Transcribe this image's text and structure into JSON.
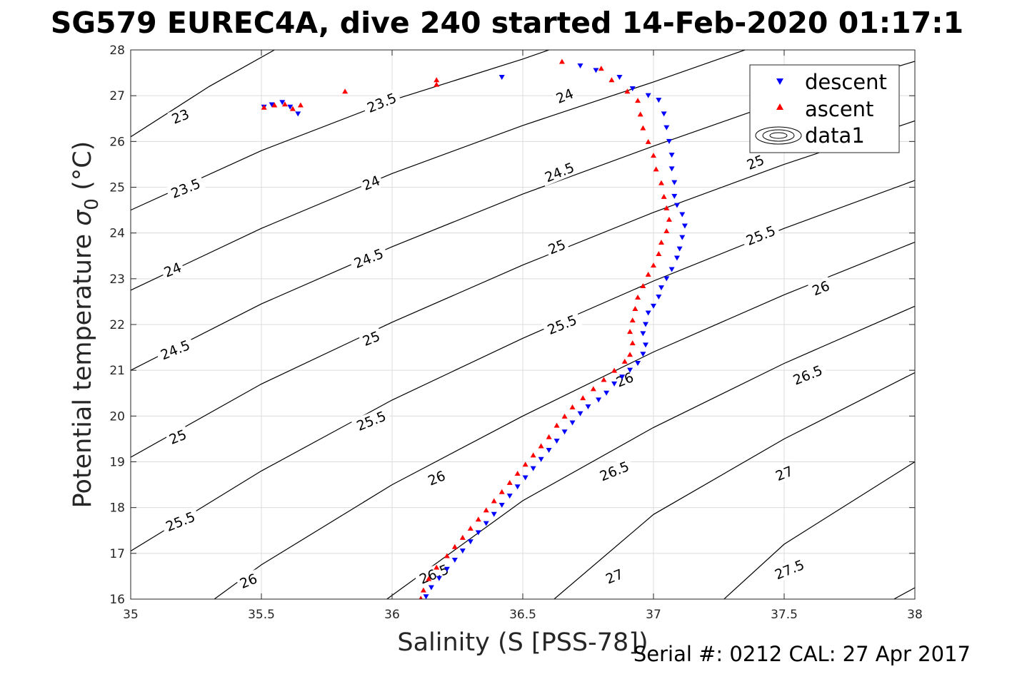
{
  "chart_data": {
    "type": "scatter",
    "title": "SG579 EUREC4A, dive 240 started 14-Feb-2020 01:17:1",
    "xlabel": "Salinity (S [PSS-78])",
    "ylabel_main": "Potential temperature ",
    "ylabel_sigma": "σ",
    "ylabel_sub": "0",
    "ylabel_unit": " (°C)",
    "footer": "Serial #: 0212  CAL: 27 Apr 2017",
    "xlim": [
      35,
      38
    ],
    "ylim": [
      16,
      28
    ],
    "x_ticks": [
      "35",
      "35.5",
      "36",
      "36.5",
      "37",
      "37.5",
      "38"
    ],
    "y_ticks": [
      "16",
      "17",
      "18",
      "19",
      "20",
      "21",
      "22",
      "23",
      "24",
      "25",
      "26",
      "27",
      "28"
    ],
    "grid": true,
    "legend_position": "top-right",
    "legend": [
      "descent",
      "ascent",
      "data1"
    ],
    "colors": {
      "descent": "#0000ff",
      "ascent": "#ff0000",
      "contour": "#000000",
      "grid": "#dcdcdc"
    },
    "contours": [
      {
        "level": "23",
        "points": [
          [
            35.0,
            26.1
          ],
          [
            35.3,
            27.2
          ],
          [
            35.55,
            28.0
          ]
        ]
      },
      {
        "level": "23.5",
        "points": [
          [
            35.0,
            24.5
          ],
          [
            35.5,
            25.8
          ],
          [
            36.0,
            26.9
          ],
          [
            36.5,
            27.8
          ],
          [
            36.6,
            28.0
          ]
        ]
      },
      {
        "level": "24",
        "points": [
          [
            35.0,
            22.75
          ],
          [
            35.5,
            24.1
          ],
          [
            36.0,
            25.3
          ],
          [
            36.5,
            26.35
          ],
          [
            37.0,
            27.3
          ],
          [
            37.35,
            28.0
          ]
        ]
      },
      {
        "level": "24.5",
        "points": [
          [
            35.0,
            21.0
          ],
          [
            35.5,
            22.45
          ],
          [
            36.0,
            23.7
          ],
          [
            36.5,
            24.85
          ],
          [
            37.0,
            25.9
          ],
          [
            37.5,
            26.9
          ],
          [
            38.0,
            27.75
          ]
        ]
      },
      {
        "level": "25",
        "points": [
          [
            35.0,
            19.1
          ],
          [
            35.5,
            20.7
          ],
          [
            36.0,
            22.05
          ],
          [
            36.5,
            23.3
          ],
          [
            37.0,
            24.45
          ],
          [
            37.5,
            25.5
          ],
          [
            38.0,
            26.45
          ]
        ]
      },
      {
        "level": "25.5",
        "points": [
          [
            35.0,
            17.05
          ],
          [
            35.5,
            18.8
          ],
          [
            36.0,
            20.35
          ],
          [
            36.5,
            21.7
          ],
          [
            37.0,
            22.95
          ],
          [
            37.5,
            24.1
          ],
          [
            38.0,
            25.15
          ]
        ]
      },
      {
        "level": "26",
        "points": [
          [
            35.32,
            16.0
          ],
          [
            35.5,
            16.75
          ],
          [
            36.0,
            18.5
          ],
          [
            36.5,
            20.0
          ],
          [
            37.0,
            21.4
          ],
          [
            37.5,
            22.65
          ],
          [
            38.0,
            23.8
          ]
        ]
      },
      {
        "level": "26.5",
        "points": [
          [
            35.98,
            16.0
          ],
          [
            36.5,
            18.15
          ],
          [
            37.0,
            19.75
          ],
          [
            37.5,
            21.15
          ],
          [
            38.0,
            22.4
          ]
        ]
      },
      {
        "level": "27",
        "points": [
          [
            36.62,
            16.0
          ],
          [
            37.0,
            17.85
          ],
          [
            37.5,
            19.5
          ],
          [
            38.0,
            20.95
          ]
        ]
      },
      {
        "level": "27.5",
        "points": [
          [
            37.27,
            16.0
          ],
          [
            37.5,
            17.2
          ],
          [
            38.0,
            19.0
          ]
        ]
      },
      {
        "level": "28",
        "points": [
          [
            37.92,
            16.0
          ],
          [
            38.0,
            16.25
          ]
        ]
      }
    ],
    "contour_labels": [
      {
        "text": "23",
        "x": 35.19,
        "y": 26.55,
        "angle": -22
      },
      {
        "text": "23.5",
        "x": 35.96,
        "y": 26.85,
        "angle": -22
      },
      {
        "text": "24",
        "x": 36.66,
        "y": 27.0,
        "angle": -22
      },
      {
        "text": "23.5",
        "x": 35.21,
        "y": 24.98,
        "angle": -22
      },
      {
        "text": "24",
        "x": 35.92,
        "y": 25.1,
        "angle": -22
      },
      {
        "text": "24.5",
        "x": 36.64,
        "y": 25.33,
        "angle": -22
      },
      {
        "text": "25",
        "x": 37.39,
        "y": 25.55,
        "angle": -22
      },
      {
        "text": "24",
        "x": 35.16,
        "y": 23.2,
        "angle": -22
      },
      {
        "text": "24.5",
        "x": 35.91,
        "y": 23.45,
        "angle": -22
      },
      {
        "text": "25",
        "x": 36.63,
        "y": 23.7,
        "angle": -22
      },
      {
        "text": "25.5",
        "x": 37.41,
        "y": 23.95,
        "angle": -22
      },
      {
        "text": "24.5",
        "x": 35.17,
        "y": 21.45,
        "angle": -22
      },
      {
        "text": "25",
        "x": 35.92,
        "y": 21.7,
        "angle": -22
      },
      {
        "text": "25.5",
        "x": 36.65,
        "y": 22.0,
        "angle": -22
      },
      {
        "text": "26",
        "x": 37.64,
        "y": 22.8,
        "angle": -22
      },
      {
        "text": "25",
        "x": 35.18,
        "y": 19.55,
        "angle": -22
      },
      {
        "text": "25.5",
        "x": 35.92,
        "y": 19.9,
        "angle": -22
      },
      {
        "text": "26",
        "x": 36.89,
        "y": 20.8,
        "angle": -22
      },
      {
        "text": "26.5",
        "x": 37.59,
        "y": 20.9,
        "angle": -22
      },
      {
        "text": "25.5",
        "x": 35.19,
        "y": 17.7,
        "angle": -22
      },
      {
        "text": "26",
        "x": 36.17,
        "y": 18.65,
        "angle": -22
      },
      {
        "text": "26.5",
        "x": 36.85,
        "y": 18.8,
        "angle": -22
      },
      {
        "text": "27",
        "x": 37.5,
        "y": 18.75,
        "angle": -22
      },
      {
        "text": "26",
        "x": 35.45,
        "y": 16.4,
        "angle": -22
      },
      {
        "text": "26.5",
        "x": 36.16,
        "y": 16.55,
        "angle": -22
      },
      {
        "text": "27",
        "x": 36.85,
        "y": 16.5,
        "angle": -22
      },
      {
        "text": "27.5",
        "x": 37.52,
        "y": 16.65,
        "angle": -22
      }
    ],
    "series": [
      {
        "name": "descent",
        "marker": "triangle-down",
        "points": [
          [
            36.42,
            27.4
          ],
          [
            36.72,
            27.65
          ],
          [
            36.78,
            27.55
          ],
          [
            36.87,
            27.4
          ],
          [
            36.92,
            27.15
          ],
          [
            36.98,
            27.0
          ],
          [
            37.02,
            26.9
          ],
          [
            37.04,
            26.6
          ],
          [
            37.05,
            26.3
          ],
          [
            37.06,
            26.0
          ],
          [
            37.07,
            25.7
          ],
          [
            37.07,
            25.4
          ],
          [
            37.08,
            25.1
          ],
          [
            37.08,
            24.8
          ],
          [
            37.09,
            24.6
          ],
          [
            37.11,
            24.4
          ],
          [
            37.12,
            24.15
          ],
          [
            37.11,
            23.9
          ],
          [
            37.1,
            23.65
          ],
          [
            37.09,
            23.45
          ],
          [
            37.07,
            23.2
          ],
          [
            37.05,
            23.0
          ],
          [
            37.03,
            22.8
          ],
          [
            37.02,
            22.6
          ],
          [
            37.0,
            22.4
          ],
          [
            36.98,
            22.25
          ],
          [
            36.97,
            22.0
          ],
          [
            36.96,
            21.8
          ],
          [
            36.97,
            21.55
          ],
          [
            36.96,
            21.35
          ],
          [
            36.94,
            21.15
          ],
          [
            36.91,
            21.0
          ],
          [
            36.88,
            20.85
          ],
          [
            36.85,
            20.7
          ],
          [
            36.82,
            20.5
          ],
          [
            36.79,
            20.35
          ],
          [
            36.75,
            20.2
          ],
          [
            36.72,
            20.05
          ],
          [
            36.69,
            19.85
          ],
          [
            36.66,
            19.65
          ],
          [
            36.63,
            19.45
          ],
          [
            36.6,
            19.25
          ],
          [
            36.57,
            19.05
          ],
          [
            36.54,
            18.85
          ],
          [
            36.51,
            18.65
          ],
          [
            36.48,
            18.45
          ],
          [
            36.45,
            18.25
          ],
          [
            36.42,
            18.05
          ],
          [
            36.39,
            17.85
          ],
          [
            36.36,
            17.65
          ],
          [
            36.33,
            17.45
          ],
          [
            36.3,
            17.25
          ],
          [
            36.27,
            17.05
          ],
          [
            36.24,
            16.85
          ],
          [
            36.21,
            16.65
          ],
          [
            36.18,
            16.45
          ],
          [
            36.15,
            16.25
          ],
          [
            36.13,
            16.05
          ],
          [
            35.51,
            26.75
          ],
          [
            35.54,
            26.8
          ],
          [
            35.58,
            26.85
          ],
          [
            35.61,
            26.75
          ],
          [
            35.64,
            26.6
          ]
        ]
      },
      {
        "name": "ascent",
        "marker": "triangle-up",
        "points": [
          [
            35.51,
            26.75
          ],
          [
            35.55,
            26.8
          ],
          [
            35.59,
            26.82
          ],
          [
            35.62,
            26.72
          ],
          [
            35.65,
            26.8
          ],
          [
            35.82,
            27.1
          ],
          [
            36.17,
            27.35
          ],
          [
            36.17,
            27.25
          ],
          [
            36.65,
            27.75
          ],
          [
            36.8,
            27.6
          ],
          [
            36.84,
            27.35
          ],
          [
            36.9,
            27.1
          ],
          [
            36.94,
            26.9
          ],
          [
            36.95,
            26.6
          ],
          [
            36.96,
            26.3
          ],
          [
            36.98,
            26.0
          ],
          [
            37.0,
            25.7
          ],
          [
            37.01,
            25.4
          ],
          [
            37.03,
            25.1
          ],
          [
            37.04,
            24.8
          ],
          [
            37.05,
            24.55
          ],
          [
            37.06,
            24.3
          ],
          [
            37.05,
            24.05
          ],
          [
            37.03,
            23.8
          ],
          [
            37.02,
            23.55
          ],
          [
            37.0,
            23.3
          ],
          [
            36.98,
            23.1
          ],
          [
            36.96,
            22.85
          ],
          [
            36.94,
            22.6
          ],
          [
            36.93,
            22.35
          ],
          [
            36.92,
            22.1
          ],
          [
            36.91,
            21.85
          ],
          [
            36.92,
            21.6
          ],
          [
            36.91,
            21.35
          ],
          [
            36.89,
            21.2
          ],
          [
            36.85,
            21.0
          ],
          [
            36.81,
            20.8
          ],
          [
            36.77,
            20.6
          ],
          [
            36.73,
            20.4
          ],
          [
            36.69,
            20.2
          ],
          [
            36.66,
            20.0
          ],
          [
            36.63,
            19.8
          ],
          [
            36.6,
            19.55
          ],
          [
            36.57,
            19.35
          ],
          [
            36.54,
            19.15
          ],
          [
            36.51,
            18.95
          ],
          [
            36.48,
            18.75
          ],
          [
            36.45,
            18.55
          ],
          [
            36.42,
            18.35
          ],
          [
            36.39,
            18.15
          ],
          [
            36.36,
            17.95
          ],
          [
            36.33,
            17.75
          ],
          [
            36.3,
            17.55
          ],
          [
            36.27,
            17.35
          ],
          [
            36.24,
            17.15
          ],
          [
            36.21,
            16.95
          ],
          [
            36.17,
            16.7
          ],
          [
            36.14,
            16.45
          ],
          [
            36.12,
            16.2
          ],
          [
            36.11,
            16.02
          ]
        ]
      }
    ]
  }
}
